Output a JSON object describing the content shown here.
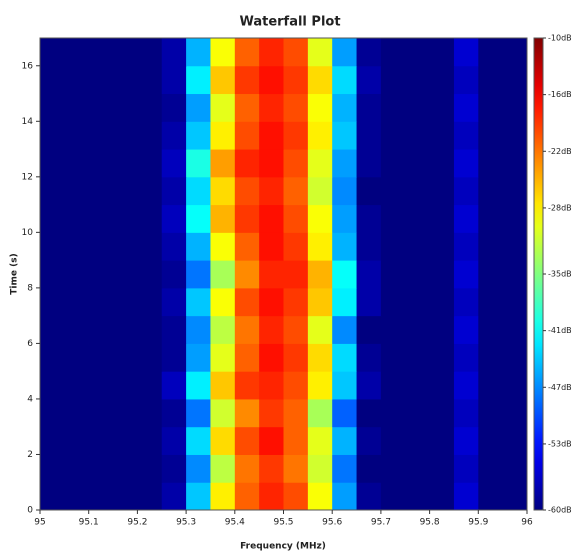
{
  "chart_data": {
    "type": "heatmap",
    "title": "Waterfall Plot",
    "x_label": "Frequency (MHz)",
    "y_label": "Time (s)",
    "colormap": "jet",
    "x": [
      95.025,
      95.075,
      95.125,
      95.175,
      95.225,
      95.275,
      95.325,
      95.375,
      95.425,
      95.475,
      95.525,
      95.575,
      95.625,
      95.675,
      95.725,
      95.775,
      95.825,
      95.875,
      95.925,
      95.975
    ],
    "y": [
      0.5,
      1.5,
      2.5,
      3.5,
      4.5,
      5.5,
      6.5,
      7.5,
      8.5,
      9.5,
      10.5,
      11.5,
      12.5,
      13.5,
      14.5,
      15.5,
      16.5
    ],
    "values": [
      [
        -60,
        -60,
        -60,
        -60,
        -60,
        -58,
        -44,
        -28,
        -21,
        -18,
        -20,
        -29,
        -46,
        -59,
        -60,
        -60,
        -60,
        -56,
        -60,
        -60
      ],
      [
        -60,
        -60,
        -60,
        -60,
        -60,
        -59,
        -47,
        -32,
        -22,
        -19,
        -22,
        -31,
        -48,
        -60,
        -60,
        -60,
        -60,
        -57,
        -60,
        -60
      ],
      [
        -60,
        -60,
        -60,
        -60,
        -60,
        -58,
        -43,
        -27,
        -20,
        -17,
        -21,
        -30,
        -45,
        -59,
        -60,
        -60,
        -60,
        -56,
        -60,
        -60
      ],
      [
        -60,
        -60,
        -60,
        -60,
        -60,
        -59,
        -48,
        -31,
        -23,
        -19,
        -21,
        -33,
        -49,
        -60,
        -60,
        -60,
        -60,
        -57,
        -60,
        -60
      ],
      [
        -60,
        -60,
        -60,
        -60,
        -60,
        -57,
        -42,
        -26,
        -19,
        -18,
        -20,
        -28,
        -44,
        -58,
        -60,
        -60,
        -60,
        -56,
        -60,
        -60
      ],
      [
        -60,
        -60,
        -60,
        -60,
        -60,
        -59,
        -46,
        -30,
        -21,
        -17,
        -19,
        -27,
        -43,
        -59,
        -60,
        -60,
        -60,
        -57,
        -60,
        -60
      ],
      [
        -60,
        -60,
        -60,
        -60,
        -60,
        -59,
        -47,
        -32,
        -22,
        -18,
        -20,
        -30,
        -47,
        -60,
        -60,
        -60,
        -60,
        -56,
        -60,
        -60
      ],
      [
        -60,
        -60,
        -60,
        -60,
        -60,
        -58,
        -44,
        -29,
        -20,
        -17,
        -19,
        -26,
        -42,
        -58,
        -60,
        -60,
        -60,
        -57,
        -60,
        -60
      ],
      [
        -60,
        -60,
        -60,
        -60,
        -60,
        -59,
        -48,
        -33,
        -23,
        -18,
        -18,
        -25,
        -41,
        -58,
        -60,
        -60,
        -60,
        -56,
        -60,
        -60
      ],
      [
        -60,
        -60,
        -60,
        -60,
        -60,
        -58,
        -45,
        -29,
        -21,
        -17,
        -19,
        -28,
        -45,
        -59,
        -60,
        -60,
        -60,
        -57,
        -60,
        -60
      ],
      [
        -60,
        -60,
        -60,
        -60,
        -60,
        -57,
        -41,
        -25,
        -19,
        -17,
        -20,
        -29,
        -46,
        -59,
        -60,
        -60,
        -60,
        -56,
        -60,
        -60
      ],
      [
        -60,
        -60,
        -60,
        -60,
        -60,
        -58,
        -43,
        -27,
        -20,
        -18,
        -21,
        -31,
        -47,
        -60,
        -60,
        -60,
        -60,
        -57,
        -60,
        -60
      ],
      [
        -60,
        -60,
        -60,
        -60,
        -60,
        -57,
        -40,
        -24,
        -18,
        -17,
        -20,
        -30,
        -46,
        -59,
        -60,
        -60,
        -60,
        -56,
        -60,
        -60
      ],
      [
        -60,
        -60,
        -60,
        -60,
        -60,
        -58,
        -44,
        -28,
        -20,
        -17,
        -19,
        -28,
        -44,
        -59,
        -60,
        -60,
        -60,
        -57,
        -60,
        -60
      ],
      [
        -60,
        -60,
        -60,
        -60,
        -60,
        -59,
        -46,
        -30,
        -21,
        -18,
        -20,
        -29,
        -45,
        -59,
        -60,
        -60,
        -60,
        -56,
        -60,
        -60
      ],
      [
        -60,
        -60,
        -60,
        -60,
        -60,
        -58,
        -42,
        -26,
        -19,
        -17,
        -19,
        -27,
        -43,
        -58,
        -60,
        -60,
        -60,
        -57,
        -60,
        -60
      ],
      [
        -60,
        -60,
        -60,
        -60,
        -60,
        -58,
        -45,
        -29,
        -21,
        -18,
        -20,
        -30,
        -46,
        -59,
        -60,
        -60,
        -60,
        -56,
        -60,
        -60
      ]
    ],
    "xlim": [
      95,
      96
    ],
    "xticks": [
      95,
      95.1,
      95.2,
      95.3,
      95.4,
      95.5,
      95.6,
      95.7,
      95.8,
      95.9,
      96
    ],
    "ylim": [
      0,
      17
    ],
    "yticks": [
      0,
      2,
      4,
      6,
      8,
      10,
      12,
      14,
      16
    ],
    "clim": [
      -60,
      -10
    ],
    "cticks": [
      {
        "value": -10,
        "label": "-10dB"
      },
      {
        "value": -16,
        "label": "-16dB"
      },
      {
        "value": -22,
        "label": "-22dB"
      },
      {
        "value": -28,
        "label": "-28dB"
      },
      {
        "value": -35,
        "label": "-35dB"
      },
      {
        "value": -41,
        "label": "-41dB"
      },
      {
        "value": -47,
        "label": "-47dB"
      },
      {
        "value": -53,
        "label": "-53dB"
      },
      {
        "value": -60,
        "label": "-60dB"
      }
    ]
  }
}
